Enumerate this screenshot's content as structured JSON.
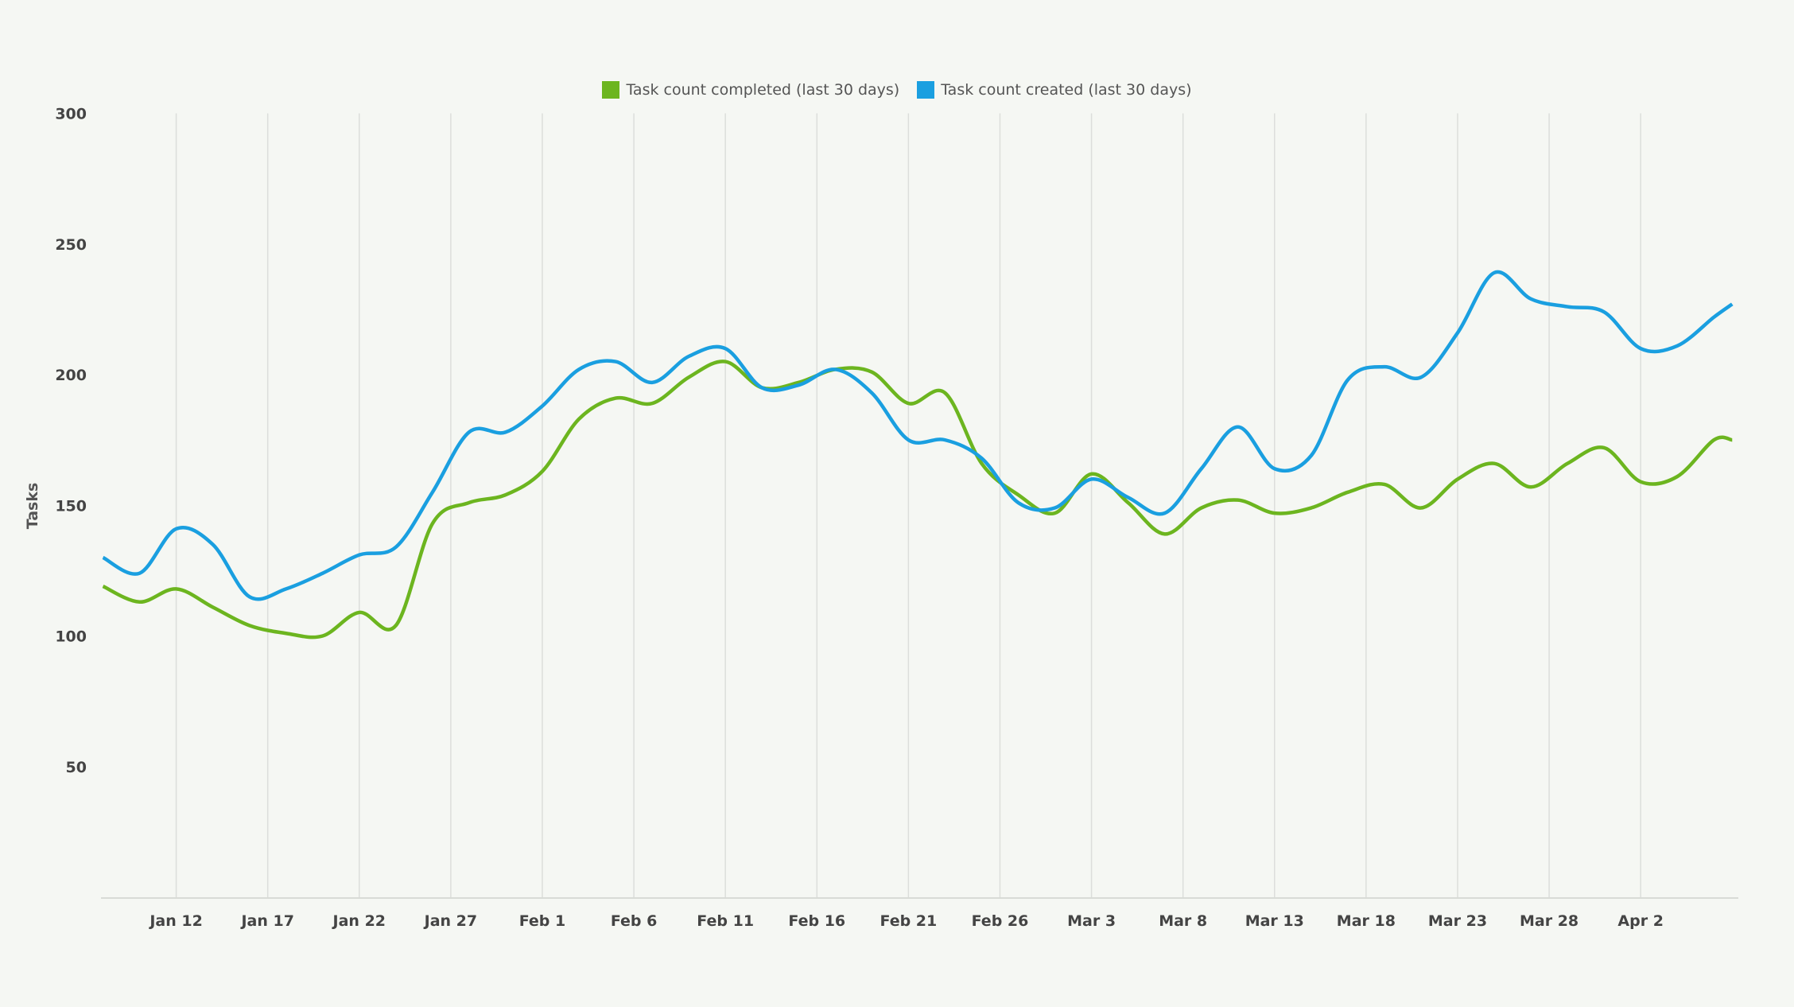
{
  "chart_data": {
    "type": "line",
    "title": "",
    "xlabel": "",
    "ylabel": "Tasks",
    "ylim": [
      0,
      300
    ],
    "yticks": [
      "50",
      "100",
      "150",
      "200",
      "250",
      "300"
    ],
    "xticks": [
      "Jan 12",
      "Jan 17",
      "Jan 22",
      "Jan 27",
      "Feb 1",
      "Feb 6",
      "Feb 11",
      "Feb 16",
      "Feb 21",
      "Feb 26",
      "Mar 3",
      "Mar 8",
      "Mar 13",
      "Mar 18",
      "Mar 23",
      "Mar 28",
      "Apr 2"
    ],
    "grid": "vertical",
    "legend_position": "top",
    "x": [
      "Jan 8",
      "Jan 10",
      "Jan 12",
      "Jan 14",
      "Jan 16",
      "Jan 18",
      "Jan 20",
      "Jan 22",
      "Jan 24",
      "Jan 26",
      "Jan 28",
      "Jan 30",
      "Feb 1",
      "Feb 3",
      "Feb 5",
      "Feb 7",
      "Feb 9",
      "Feb 11",
      "Feb 13",
      "Feb 15",
      "Feb 17",
      "Feb 19",
      "Feb 21",
      "Feb 23",
      "Feb 25",
      "Feb 27",
      "Mar 1",
      "Mar 3",
      "Mar 5",
      "Mar 7",
      "Mar 9",
      "Mar 11",
      "Mar 13",
      "Mar 15",
      "Mar 17",
      "Mar 19",
      "Mar 21",
      "Mar 23",
      "Mar 25",
      "Mar 27",
      "Mar 29",
      "Mar 31",
      "Apr 2",
      "Apr 4",
      "Apr 6",
      "Apr 7"
    ],
    "series": [
      {
        "name": "Task count completed (last 30 days)",
        "color": "#6cb51f",
        "values": [
          119,
          113,
          118,
          111,
          104,
          101,
          100,
          109,
          104,
          143,
          151,
          154,
          163,
          183,
          191,
          189,
          199,
          205,
          195,
          197,
          202,
          201,
          189,
          193,
          166,
          154,
          147,
          162,
          151,
          139,
          149,
          152,
          147,
          149,
          155,
          158,
          149,
          160,
          166,
          157,
          166,
          172,
          159,
          161,
          175,
          175
        ]
      },
      {
        "name": "Task count created (last 30 days)",
        "color": "#1a9fe0",
        "values": [
          130,
          124,
          141,
          135,
          115,
          118,
          124,
          131,
          134,
          155,
          178,
          178,
          188,
          202,
          205,
          197,
          207,
          210,
          195,
          196,
          202,
          193,
          175,
          175,
          168,
          151,
          149,
          160,
          153,
          147,
          164,
          180,
          164,
          169,
          198,
          203,
          199,
          216,
          239,
          229,
          226,
          224,
          210,
          211,
          222,
          227
        ]
      }
    ]
  }
}
